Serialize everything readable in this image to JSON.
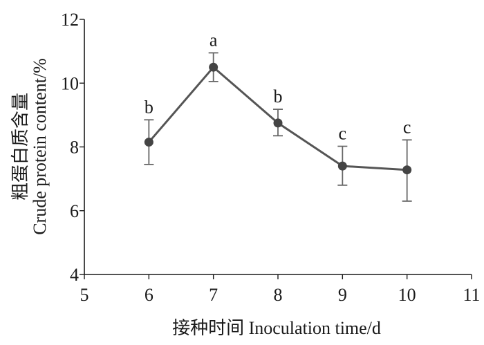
{
  "chart_data": {
    "type": "line",
    "xlabel": "接种时间  Inoculation time/d",
    "ylabel_cn": "粗蛋白质含量",
    "ylabel_en": "Crude protein content/%",
    "xlim": [
      5,
      11
    ],
    "ylim": [
      4,
      12
    ],
    "x_ticks": [
      5,
      6,
      7,
      8,
      9,
      10,
      11
    ],
    "y_ticks": [
      4,
      6,
      8,
      10,
      12
    ],
    "grid": false,
    "colors": {
      "line": "#555555",
      "marker": "#444444",
      "error_bar": "#666666"
    },
    "series": [
      {
        "x": [
          6,
          7,
          8,
          9,
          10
        ],
        "y": [
          8.15,
          10.5,
          8.75,
          7.4,
          7.28
        ],
        "error_low": [
          7.45,
          10.05,
          8.35,
          6.8,
          6.3
        ],
        "error_high": [
          8.85,
          10.95,
          9.18,
          8.02,
          8.22
        ],
        "significance": [
          "b",
          "a",
          "b",
          "c",
          "c"
        ]
      }
    ]
  }
}
